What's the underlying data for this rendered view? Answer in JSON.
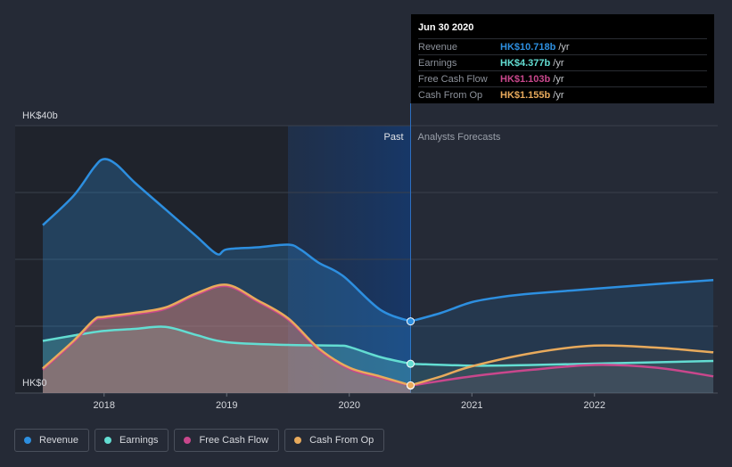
{
  "chart_data": {
    "type": "area",
    "y_axis": {
      "top_label": "HK$40b",
      "bottom_label": "HK$0",
      "ylim": [
        0,
        40
      ]
    },
    "x_ticks": [
      "2018",
      "2019",
      "2020",
      "2021",
      "2022"
    ],
    "xlim": [
      2017.5,
      2022.97
    ],
    "past_label": "Past",
    "forecast_label": "Analysts Forecasts",
    "divider_x": 2020.5,
    "highlight_start": 2019.5,
    "series": [
      {
        "name": "Revenue",
        "color": "#2d8fe0",
        "past": [
          [
            2017.5,
            25.1
          ],
          [
            2017.75,
            29.5
          ],
          [
            2017.92,
            33.8
          ],
          [
            2018.0,
            35.0
          ],
          [
            2018.1,
            34.2
          ],
          [
            2018.25,
            31.5
          ],
          [
            2018.5,
            27.5
          ],
          [
            2018.75,
            23.5
          ],
          [
            2018.92,
            20.8
          ],
          [
            2019.0,
            21.5
          ],
          [
            2019.25,
            21.8
          ],
          [
            2019.5,
            22.2
          ],
          [
            2019.6,
            21.5
          ],
          [
            2019.75,
            19.5
          ],
          [
            2019.95,
            17.5
          ],
          [
            2020.25,
            12.5
          ],
          [
            2020.5,
            10.718
          ]
        ],
        "forecast": [
          [
            2020.5,
            10.718
          ],
          [
            2020.75,
            12.0
          ],
          [
            2021.0,
            13.6
          ],
          [
            2021.25,
            14.4
          ],
          [
            2021.5,
            14.9
          ],
          [
            2022.0,
            15.6
          ],
          [
            2022.5,
            16.3
          ],
          [
            2022.97,
            16.9
          ]
        ]
      },
      {
        "name": "Earnings",
        "color": "#63ddd2",
        "past": [
          [
            2017.5,
            7.8
          ],
          [
            2017.75,
            8.6
          ],
          [
            2018.0,
            9.3
          ],
          [
            2018.25,
            9.6
          ],
          [
            2018.5,
            9.9
          ],
          [
            2018.75,
            8.7
          ],
          [
            2019.0,
            7.6
          ],
          [
            2019.5,
            7.2
          ],
          [
            2019.9,
            7.1
          ],
          [
            2020.0,
            6.9
          ],
          [
            2020.25,
            5.4
          ],
          [
            2020.5,
            4.377
          ]
        ],
        "forecast": [
          [
            2020.5,
            4.377
          ],
          [
            2021.0,
            4.1
          ],
          [
            2021.5,
            4.2
          ],
          [
            2022.0,
            4.4
          ],
          [
            2022.5,
            4.6
          ],
          [
            2022.97,
            4.8
          ]
        ]
      },
      {
        "name": "Free Cash Flow",
        "color": "#c9478c",
        "past": [
          [
            2017.5,
            3.5
          ],
          [
            2017.75,
            7.6
          ],
          [
            2017.92,
            10.8
          ],
          [
            2018.0,
            11.2
          ],
          [
            2018.25,
            11.8
          ],
          [
            2018.5,
            12.6
          ],
          [
            2018.75,
            14.7
          ],
          [
            2019.0,
            16.0
          ],
          [
            2019.25,
            13.7
          ],
          [
            2019.5,
            11.0
          ],
          [
            2019.75,
            6.5
          ],
          [
            2020.0,
            3.6
          ],
          [
            2020.25,
            2.3
          ],
          [
            2020.5,
            1.103
          ]
        ],
        "forecast": [
          [
            2020.5,
            1.103
          ],
          [
            2021.0,
            2.5
          ],
          [
            2021.5,
            3.5
          ],
          [
            2022.0,
            4.2
          ],
          [
            2022.5,
            3.8
          ],
          [
            2022.97,
            2.5
          ]
        ]
      },
      {
        "name": "Cash From Op",
        "color": "#e8aa5c",
        "past": [
          [
            2017.5,
            3.7
          ],
          [
            2017.75,
            7.8
          ],
          [
            2017.92,
            11.0
          ],
          [
            2018.0,
            11.4
          ],
          [
            2018.25,
            12.0
          ],
          [
            2018.5,
            12.8
          ],
          [
            2018.75,
            14.9
          ],
          [
            2019.0,
            16.2
          ],
          [
            2019.25,
            13.9
          ],
          [
            2019.5,
            11.2
          ],
          [
            2019.75,
            6.7
          ],
          [
            2020.0,
            3.8
          ],
          [
            2020.25,
            2.5
          ],
          [
            2020.5,
            1.155
          ]
        ],
        "forecast": [
          [
            2020.5,
            1.155
          ],
          [
            2020.75,
            2.5
          ],
          [
            2021.0,
            4.0
          ],
          [
            2021.5,
            6.0
          ],
          [
            2022.0,
            7.1
          ],
          [
            2022.5,
            6.8
          ],
          [
            2022.97,
            6.1
          ]
        ]
      }
    ]
  },
  "tooltip": {
    "date": "Jun 30 2020",
    "unit": "/yr",
    "rows": [
      {
        "label": "Revenue",
        "value": "HK$10.718b",
        "color": "#2d8fe0"
      },
      {
        "label": "Earnings",
        "value": "HK$4.377b",
        "color": "#63ddd2"
      },
      {
        "label": "Free Cash Flow",
        "value": "HK$1.103b",
        "color": "#c9478c"
      },
      {
        "label": "Cash From Op",
        "value": "HK$1.155b",
        "color": "#e8aa5c"
      }
    ]
  },
  "legend": [
    {
      "label": "Revenue",
      "color": "#2d8fe0"
    },
    {
      "label": "Earnings",
      "color": "#63ddd2"
    },
    {
      "label": "Free Cash Flow",
      "color": "#c9478c"
    },
    {
      "label": "Cash From Op",
      "color": "#e8aa5c"
    }
  ]
}
